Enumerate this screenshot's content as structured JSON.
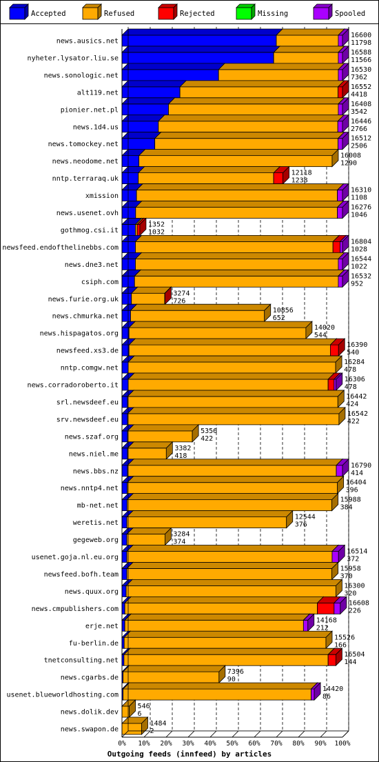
{
  "chart_data": {
    "type": "bar",
    "orientation": "horizontal",
    "stacked": true,
    "title": "",
    "xlabel": "Outgoing feeds (innfeed) by articles",
    "ylabel": "",
    "xlim": [
      0,
      100
    ],
    "x_unit": "%",
    "x_ticks": [
      "0%",
      "10%",
      "20%",
      "30%",
      "40%",
      "50%",
      "60%",
      "70%",
      "80%",
      "90%",
      "100%"
    ],
    "legend_position": "top",
    "legend": [
      {
        "name": "Accepted",
        "color": "#0000ff"
      },
      {
        "name": "Refused",
        "color": "#ffaa00"
      },
      {
        "name": "Rejected",
        "color": "#ff0000"
      },
      {
        "name": "Missing",
        "color": "#00ff00"
      },
      {
        "name": "Spooled",
        "color": "#aa00ff"
      }
    ],
    "rows": [
      {
        "name": "news.ausics.net",
        "total": 16600,
        "accepted": 11798,
        "segments_pct": [
          70.0,
          28.1,
          0,
          0,
          1.9
        ]
      },
      {
        "name": "nyheter.lysator.liu.se",
        "total": 16588,
        "accepted": 11566,
        "segments_pct": [
          68.8,
          29.3,
          0,
          0,
          1.9
        ]
      },
      {
        "name": "news.sonologic.net",
        "total": 16530,
        "accepted": 7362,
        "segments_pct": [
          43.8,
          54.3,
          0,
          0,
          1.9
        ]
      },
      {
        "name": "alt119.net",
        "total": 16552,
        "accepted": 4418,
        "segments_pct": [
          26.3,
          71.7,
          2.0,
          0,
          0
        ]
      },
      {
        "name": "pionier.net.pl",
        "total": 16408,
        "accepted": 3542,
        "segments_pct": [
          21.1,
          77.0,
          0,
          0,
          1.9
        ]
      },
      {
        "name": "news.1d4.us",
        "total": 16446,
        "accepted": 2766,
        "segments_pct": [
          16.5,
          81.4,
          0,
          0,
          2.1
        ]
      },
      {
        "name": "news.tomockey.net",
        "total": 16512,
        "accepted": 2506,
        "segments_pct": [
          14.9,
          83.1,
          0,
          0,
          2.0
        ]
      },
      {
        "name": "news.neodome.net",
        "total": 16008,
        "accepted": 1290,
        "segments_pct": [
          7.7,
          87.6,
          0,
          0,
          0
        ]
      },
      {
        "name": "nntp.terraraq.uk",
        "total": 12118,
        "accepted": 1238,
        "segments_pct": [
          7.4,
          61.4,
          4.2,
          0,
          0
        ]
      },
      {
        "name": "xmission",
        "total": 16310,
        "accepted": 1108,
        "segments_pct": [
          6.6,
          91.1,
          0,
          0,
          2.3
        ]
      },
      {
        "name": "news.usenet.ovh",
        "total": 16276,
        "accepted": 1046,
        "segments_pct": [
          6.2,
          91.5,
          0,
          0,
          2.3
        ]
      },
      {
        "name": "gothmog.csi.it",
        "total": 1352,
        "accepted": 1032,
        "segments_pct": [
          6.1,
          0.8,
          1.2,
          0,
          0
        ]
      },
      {
        "name": "newsfeed.endofthelinebbs.com",
        "total": 16804,
        "accepted": 1028,
        "segments_pct": [
          6.1,
          89.6,
          3.2,
          0,
          1.1
        ]
      },
      {
        "name": "news.dne3.net",
        "total": 16544,
        "accepted": 1022,
        "segments_pct": [
          6.1,
          92.0,
          0,
          0,
          1.9
        ]
      },
      {
        "name": "csiph.com",
        "total": 16532,
        "accepted": 952,
        "segments_pct": [
          5.7,
          92.4,
          0,
          0,
          1.9
        ]
      },
      {
        "name": "news.furie.org.uk",
        "total": 3274,
        "accepted": 726,
        "segments_pct": [
          4.3,
          15.1,
          0.1,
          0,
          0
        ]
      },
      {
        "name": "news.chmurka.net",
        "total": 10856,
        "accepted": 652,
        "segments_pct": [
          3.9,
          60.7,
          0,
          0,
          0
        ]
      },
      {
        "name": "news.hispagatos.org",
        "total": 14020,
        "accepted": 544,
        "segments_pct": [
          3.2,
          80.2,
          0,
          0,
          0
        ]
      },
      {
        "name": "newsfeed.xs3.de",
        "total": 16390,
        "accepted": 540,
        "segments_pct": [
          3.2,
          91.3,
          3.7,
          0,
          0
        ]
      },
      {
        "name": "nntp.comgw.net",
        "total": 16284,
        "accepted": 478,
        "segments_pct": [
          2.8,
          94.1,
          0,
          0,
          0
        ]
      },
      {
        "name": "news.corradoroberto.it",
        "total": 16306,
        "accepted": 478,
        "segments_pct": [
          2.8,
          90.7,
          2.7,
          0,
          0.9
        ]
      },
      {
        "name": "srl.newsdeef.eu",
        "total": 16442,
        "accepted": 424,
        "segments_pct": [
          2.5,
          95.4,
          0,
          0,
          0
        ]
      },
      {
        "name": "srv.newsdeef.eu",
        "total": 16542,
        "accepted": 422,
        "segments_pct": [
          2.5,
          95.9,
          0,
          0,
          0
        ]
      },
      {
        "name": "news.szaf.org",
        "total": 5356,
        "accepted": 422,
        "segments_pct": [
          2.5,
          29.4,
          0,
          0,
          0
        ]
      },
      {
        "name": "news.niel.me",
        "total": 3382,
        "accepted": 418,
        "segments_pct": [
          2.5,
          17.6,
          0,
          0,
          0
        ]
      },
      {
        "name": "news.bbs.nz",
        "total": 16790,
        "accepted": 414,
        "segments_pct": [
          2.5,
          94.7,
          0,
          0,
          2.8
        ]
      },
      {
        "name": "news.nntp4.net",
        "total": 16404,
        "accepted": 396,
        "segments_pct": [
          2.4,
          95.3,
          0,
          0,
          0
        ]
      },
      {
        "name": "mb-net.net",
        "total": 15988,
        "accepted": 384,
        "segments_pct": [
          2.3,
          92.9,
          0,
          0,
          0
        ]
      },
      {
        "name": "weretis.net",
        "total": 12544,
        "accepted": 376,
        "segments_pct": [
          2.2,
          72.4,
          0,
          0,
          0
        ]
      },
      {
        "name": "gegeweb.org",
        "total": 3284,
        "accepted": 374,
        "segments_pct": [
          2.2,
          17.3,
          0,
          0,
          0
        ]
      },
      {
        "name": "usenet.goja.nl.eu.org",
        "total": 16514,
        "accepted": 372,
        "segments_pct": [
          2.2,
          93.1,
          0,
          0,
          2.9
        ]
      },
      {
        "name": "newsfeed.bofh.team",
        "total": 15958,
        "accepted": 370,
        "segments_pct": [
          2.2,
          93.0,
          0,
          0,
          0
        ]
      },
      {
        "name": "news.quux.org",
        "total": 16300,
        "accepted": 320,
        "segments_pct": [
          1.9,
          95.1,
          0,
          0,
          0
        ]
      },
      {
        "name": "news.cmpublishers.com",
        "total": 16608,
        "accepted": 226,
        "segments_pct": [
          1.3,
          87.3,
          7.6,
          0,
          2.8
        ]
      },
      {
        "name": "erje.net",
        "total": 14168,
        "accepted": 212,
        "segments_pct": [
          1.3,
          81.0,
          0,
          0,
          2.0
        ]
      },
      {
        "name": "fu-berlin.de",
        "total": 15526,
        "accepted": 166,
        "segments_pct": [
          1.0,
          91.5,
          0,
          0,
          0
        ]
      },
      {
        "name": "tnetconsulting.net",
        "total": 16504,
        "accepted": 144,
        "segments_pct": [
          0.9,
          92.6,
          3.5,
          0,
          0
        ]
      },
      {
        "name": "news.cgarbs.de",
        "total": 7396,
        "accepted": 90,
        "segments_pct": [
          0.5,
          43.5,
          0,
          0,
          0
        ]
      },
      {
        "name": "usenet.blueworldhosting.com",
        "total": 14420,
        "accepted": 86,
        "segments_pct": [
          0.5,
          85.3,
          0,
          0,
          1.4
        ]
      },
      {
        "name": "news.dolik.dev",
        "total": 546,
        "accepted": 6,
        "segments_pct": [
          0.0,
          3.3,
          0,
          0,
          0
        ]
      },
      {
        "name": "news.swapon.de",
        "total": 1484,
        "accepted": 2,
        "segments_pct": [
          0.0,
          8.9,
          0,
          0,
          0
        ]
      }
    ]
  }
}
